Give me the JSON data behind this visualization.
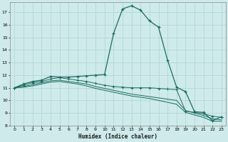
{
  "xlabel": "Humidex (Indice chaleur)",
  "bg_color": "#ceeaea",
  "line_color": "#1a6b60",
  "grid_color": "#aed4d4",
  "xlim": [
    -0.5,
    23.5
  ],
  "ylim": [
    8,
    17.8
  ],
  "yticks": [
    8,
    9,
    10,
    11,
    12,
    13,
    14,
    15,
    16,
    17
  ],
  "xticks": [
    0,
    1,
    2,
    3,
    4,
    5,
    6,
    7,
    8,
    9,
    10,
    11,
    12,
    13,
    14,
    15,
    16,
    17,
    18,
    19,
    20,
    21,
    22,
    23
  ],
  "line1_x": [
    0,
    1,
    2,
    3,
    4,
    5,
    6,
    7,
    8,
    9,
    10,
    11,
    12,
    13,
    14,
    15,
    16,
    17,
    18,
    19,
    20,
    21,
    22,
    23
  ],
  "line1_y": [
    11.0,
    11.3,
    11.5,
    11.6,
    11.9,
    11.85,
    11.85,
    11.9,
    11.95,
    12.0,
    12.05,
    15.3,
    17.25,
    17.5,
    17.15,
    16.3,
    15.8,
    13.2,
    11.05,
    10.7,
    9.1,
    9.05,
    8.4,
    8.7
  ],
  "line2_x": [
    0,
    1,
    2,
    3,
    4,
    5,
    6,
    7,
    8,
    9,
    10,
    11,
    12,
    13,
    14,
    15,
    16,
    17,
    18,
    19,
    20,
    21,
    22,
    23
  ],
  "line2_y": [
    11.0,
    11.2,
    11.4,
    11.5,
    11.7,
    11.8,
    11.7,
    11.6,
    11.5,
    11.35,
    11.2,
    11.1,
    11.05,
    11.0,
    11.0,
    11.0,
    10.95,
    10.9,
    10.85,
    9.15,
    9.05,
    8.95,
    8.75,
    8.65
  ],
  "line3_x": [
    0,
    1,
    2,
    3,
    4,
    5,
    6,
    7,
    8,
    9,
    10,
    11,
    12,
    13,
    14,
    15,
    16,
    17,
    18,
    19,
    20,
    21,
    22,
    23
  ],
  "line3_y": [
    11.0,
    11.1,
    11.25,
    11.4,
    11.55,
    11.6,
    11.5,
    11.4,
    11.3,
    11.1,
    10.95,
    10.8,
    10.65,
    10.5,
    10.4,
    10.3,
    10.2,
    10.1,
    10.0,
    9.2,
    9.0,
    8.8,
    8.55,
    8.45
  ],
  "line4_x": [
    0,
    1,
    2,
    3,
    4,
    5,
    6,
    7,
    8,
    9,
    10,
    11,
    12,
    13,
    14,
    15,
    16,
    17,
    18,
    19,
    20,
    21,
    22,
    23
  ],
  "line4_y": [
    11.0,
    11.05,
    11.15,
    11.3,
    11.45,
    11.5,
    11.4,
    11.3,
    11.15,
    10.95,
    10.8,
    10.65,
    10.5,
    10.35,
    10.25,
    10.15,
    10.0,
    9.85,
    9.7,
    9.05,
    8.85,
    8.65,
    8.35,
    8.35
  ]
}
